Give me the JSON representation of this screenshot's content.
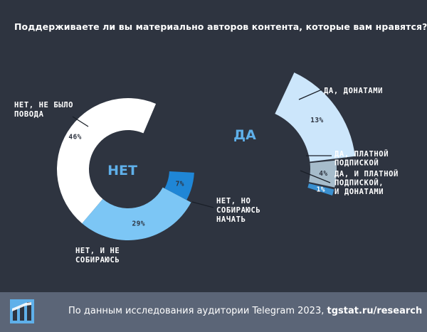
{
  "title": "Поддерживаете ли вы материально авторов контента, которые вам нравятся?",
  "footer": {
    "text": "По данным исследования аудитории Telegram 2023,",
    "link": "tgstat.ru/research"
  },
  "chart_data": {
    "type": "pie",
    "title": "Поддерживаете ли вы материально авторов контента, которые вам нравятся?",
    "groups": [
      {
        "name": "НЕТ",
        "slices": [
          {
            "label": [
              "НЕТ, НЕ БЫЛО",
              "ПОВОДА"
            ],
            "value": 46,
            "display": "46%",
            "color": "#ffffff"
          },
          {
            "label": [
              "НЕТ, НО",
              "СОБИРАЮСЬ",
              "НАЧАТЬ"
            ],
            "value": 7,
            "display": "7%",
            "color": "#1f86d6"
          },
          {
            "label": [
              "НЕТ, И НЕ",
              "СОБИРАЮСЬ"
            ],
            "value": 29,
            "display": "29%",
            "color": "#7cc6f5"
          }
        ]
      },
      {
        "name": "ДА",
        "slices": [
          {
            "label": [
              "ДА, ДОНАТАМИ"
            ],
            "value": 13,
            "display": "13%",
            "color": "#cce6fb"
          },
          {
            "label": [
              "ДА, ПЛАТНОЙ",
              "ПОДПИСКОЙ"
            ],
            "value": 4,
            "display": "4%",
            "color": "#a6bccb"
          },
          {
            "label": [
              "ДА, И ПЛАТНОЙ",
              "ПОДПИСКОЙ,",
              "И ДОНАТАМИ"
            ],
            "value": 1,
            "display": "1%",
            "color": "#3a90d0"
          }
        ]
      }
    ]
  }
}
